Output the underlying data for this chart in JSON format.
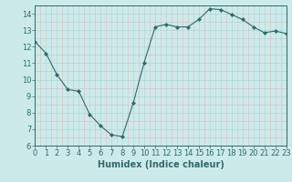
{
  "x": [
    0,
    1,
    2,
    3,
    4,
    5,
    6,
    7,
    8,
    9,
    10,
    11,
    12,
    13,
    14,
    15,
    16,
    17,
    18,
    19,
    20,
    21,
    22,
    23
  ],
  "y": [
    12.3,
    11.6,
    10.3,
    9.4,
    9.3,
    7.9,
    7.2,
    6.65,
    6.55,
    8.6,
    11.05,
    13.2,
    13.35,
    13.2,
    13.2,
    13.65,
    14.3,
    14.25,
    13.95,
    13.65,
    13.2,
    12.85,
    12.95,
    12.8
  ],
  "line_color": "#2d6b6b",
  "marker": "D",
  "marker_size": 2,
  "bg_color": "#cdeaea",
  "grid_major_color": "#b8d4d4",
  "grid_minor_color": "#dbbcbc",
  "xlabel": "Humidex (Indice chaleur)",
  "xlim": [
    0,
    23
  ],
  "ylim": [
    6,
    14.5
  ],
  "yticks": [
    6,
    7,
    8,
    9,
    10,
    11,
    12,
    13,
    14
  ],
  "xticks": [
    0,
    1,
    2,
    3,
    4,
    5,
    6,
    7,
    8,
    9,
    10,
    11,
    12,
    13,
    14,
    15,
    16,
    17,
    18,
    19,
    20,
    21,
    22,
    23
  ],
  "tick_color": "#2d6b6b",
  "label_fontsize": 7,
  "tick_fontsize": 6,
  "spine_color": "#2d6b6b"
}
